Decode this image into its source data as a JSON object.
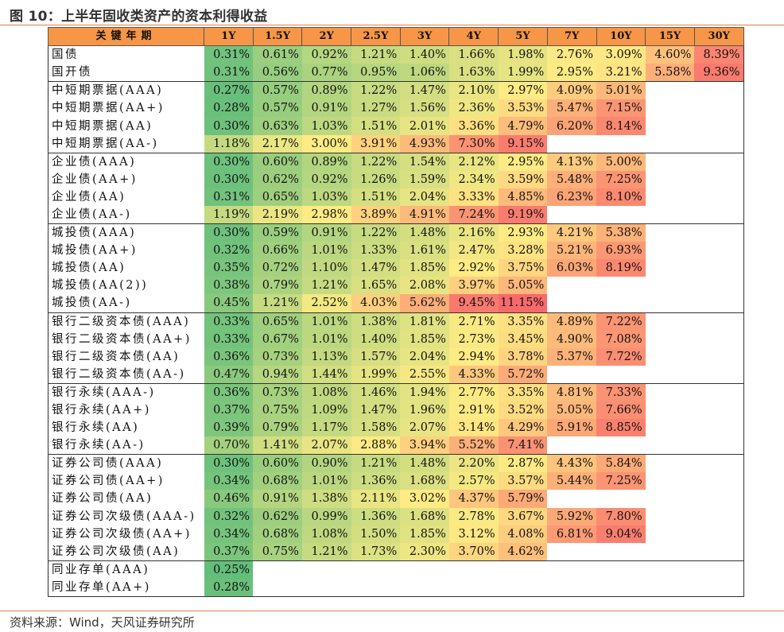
{
  "title": "图 10：上半年固收类资产的资本利得收益",
  "source": "资料来源：Wind，天风证券研究所",
  "headers": [
    "关键年期",
    "1Y",
    "1.5Y",
    "2Y",
    "2.5Y",
    "3Y",
    "4Y",
    "5Y",
    "7Y",
    "10Y",
    "15Y",
    "30Y"
  ],
  "rows": [
    {
      "label": "国债",
      "values": [
        "0.31%",
        "0.61%",
        "0.92%",
        "1.21%",
        "1.40%",
        "1.66%",
        "1.98%",
        "2.76%",
        "3.09%",
        "4.60%",
        "8.39%"
      ]
    },
    {
      "label": "国开债",
      "values": [
        "0.31%",
        "0.56%",
        "0.77%",
        "0.95%",
        "1.06%",
        "1.63%",
        "1.99%",
        "2.95%",
        "3.21%",
        "5.58%",
        "9.36%"
      ]
    },
    {
      "label": "中短期票据(AAA)",
      "values": [
        "0.27%",
        "0.57%",
        "0.89%",
        "1.22%",
        "1.47%",
        "2.10%",
        "2.97%",
        "4.09%",
        "5.01%",
        "",
        ""
      ]
    },
    {
      "label": "中短期票据(AA+)",
      "values": [
        "0.28%",
        "0.57%",
        "0.91%",
        "1.27%",
        "1.56%",
        "2.36%",
        "3.53%",
        "5.47%",
        "7.15%",
        "",
        ""
      ]
    },
    {
      "label": "中短期票据(AA)",
      "values": [
        "0.30%",
        "0.63%",
        "1.03%",
        "1.51%",
        "2.01%",
        "3.36%",
        "4.79%",
        "6.20%",
        "8.14%",
        "",
        ""
      ]
    },
    {
      "label": "中短期票据(AA-)",
      "values": [
        "1.18%",
        "2.17%",
        "3.00%",
        "3.91%",
        "4.93%",
        "7.30%",
        "9.15%",
        "",
        "",
        "",
        ""
      ]
    },
    {
      "label": "企业债(AAA)",
      "values": [
        "0.30%",
        "0.60%",
        "0.89%",
        "1.22%",
        "1.54%",
        "2.12%",
        "2.95%",
        "4.13%",
        "5.00%",
        "",
        ""
      ]
    },
    {
      "label": "企业债(AA+)",
      "values": [
        "0.30%",
        "0.62%",
        "0.92%",
        "1.26%",
        "1.59%",
        "2.34%",
        "3.59%",
        "5.48%",
        "7.25%",
        "",
        ""
      ]
    },
    {
      "label": "企业债(AA)",
      "values": [
        "0.31%",
        "0.65%",
        "1.03%",
        "1.51%",
        "2.04%",
        "3.33%",
        "4.85%",
        "6.23%",
        "8.10%",
        "",
        ""
      ]
    },
    {
      "label": "企业债(AA-)",
      "values": [
        "1.19%",
        "2.19%",
        "2.98%",
        "3.89%",
        "4.91%",
        "7.24%",
        "9.19%",
        "",
        "",
        "",
        ""
      ]
    },
    {
      "label": "城投债(AAA)",
      "values": [
        "0.30%",
        "0.59%",
        "0.91%",
        "1.22%",
        "1.48%",
        "2.16%",
        "2.93%",
        "4.21%",
        "5.38%",
        "",
        ""
      ]
    },
    {
      "label": "城投债(AA+)",
      "values": [
        "0.32%",
        "0.66%",
        "1.01%",
        "1.33%",
        "1.61%",
        "2.47%",
        "3.28%",
        "5.21%",
        "6.93%",
        "",
        ""
      ]
    },
    {
      "label": "城投债(AA)",
      "values": [
        "0.35%",
        "0.72%",
        "1.10%",
        "1.47%",
        "1.85%",
        "2.92%",
        "3.75%",
        "6.03%",
        "8.19%",
        "",
        ""
      ]
    },
    {
      "label": "城投债(AA(2))",
      "values": [
        "0.38%",
        "0.79%",
        "1.21%",
        "1.65%",
        "2.08%",
        "3.97%",
        "5.05%",
        "",
        "",
        "",
        ""
      ]
    },
    {
      "label": "城投债(AA-)",
      "values": [
        "0.45%",
        "1.21%",
        "2.52%",
        "4.03%",
        "5.62%",
        "9.45%",
        "11.15%",
        "",
        "",
        "",
        ""
      ]
    },
    {
      "label": "银行二级资本债(AAA)",
      "values": [
        "0.33%",
        "0.65%",
        "1.01%",
        "1.38%",
        "1.81%",
        "2.71%",
        "3.35%",
        "4.89%",
        "7.22%",
        "",
        ""
      ]
    },
    {
      "label": "银行二级资本债(AA+)",
      "values": [
        "0.33%",
        "0.67%",
        "1.01%",
        "1.40%",
        "1.85%",
        "2.73%",
        "3.45%",
        "4.90%",
        "7.08%",
        "",
        ""
      ]
    },
    {
      "label": "银行二级资本债(AA)",
      "values": [
        "0.36%",
        "0.73%",
        "1.13%",
        "1.57%",
        "2.04%",
        "2.94%",
        "3.78%",
        "5.37%",
        "7.72%",
        "",
        ""
      ]
    },
    {
      "label": "银行二级资本债(AA-)",
      "values": [
        "0.47%",
        "0.94%",
        "1.44%",
        "1.99%",
        "2.55%",
        "4.33%",
        "5.72%",
        "",
        "",
        "",
        ""
      ]
    },
    {
      "label": "银行永续(AAA-)",
      "values": [
        "0.36%",
        "0.73%",
        "1.08%",
        "1.46%",
        "1.94%",
        "2.77%",
        "3.35%",
        "4.81%",
        "7.33%",
        "",
        ""
      ]
    },
    {
      "label": "银行永续(AA+)",
      "values": [
        "0.37%",
        "0.75%",
        "1.09%",
        "1.47%",
        "1.96%",
        "2.91%",
        "3.52%",
        "5.05%",
        "7.66%",
        "",
        ""
      ]
    },
    {
      "label": "银行永续(AA)",
      "values": [
        "0.39%",
        "0.79%",
        "1.17%",
        "1.58%",
        "2.07%",
        "3.14%",
        "4.29%",
        "5.91%",
        "8.85%",
        "",
        ""
      ]
    },
    {
      "label": "银行永续(AA-)",
      "values": [
        "0.70%",
        "1.41%",
        "2.07%",
        "2.88%",
        "3.94%",
        "5.52%",
        "7.41%",
        "",
        "",
        "",
        ""
      ]
    },
    {
      "label": "证券公司债(AAA)",
      "values": [
        "0.30%",
        "0.60%",
        "0.90%",
        "1.21%",
        "1.48%",
        "2.20%",
        "2.87%",
        "4.43%",
        "5.84%",
        "",
        ""
      ]
    },
    {
      "label": "证券公司债(AA+)",
      "values": [
        "0.34%",
        "0.68%",
        "1.01%",
        "1.36%",
        "1.68%",
        "2.57%",
        "3.57%",
        "5.44%",
        "7.25%",
        "",
        ""
      ]
    },
    {
      "label": "证券公司债(AA)",
      "values": [
        "0.46%",
        "0.91%",
        "1.38%",
        "2.11%",
        "3.02%",
        "4.37%",
        "5.79%",
        "",
        "",
        "",
        ""
      ]
    },
    {
      "label": "证券公司次级债(AAA-)",
      "values": [
        "0.32%",
        "0.62%",
        "0.99%",
        "1.36%",
        "1.68%",
        "2.78%",
        "3.67%",
        "5.92%",
        "7.80%",
        "",
        ""
      ]
    },
    {
      "label": "证券公司次级债(AA+)",
      "values": [
        "0.34%",
        "0.68%",
        "1.08%",
        "1.50%",
        "1.85%",
        "3.12%",
        "4.08%",
        "6.81%",
        "9.04%",
        "",
        ""
      ]
    },
    {
      "label": "证券公司次级债(AA)",
      "values": [
        "0.37%",
        "0.75%",
        "1.21%",
        "1.73%",
        "2.30%",
        "3.70%",
        "4.62%",
        "",
        "",
        "",
        ""
      ]
    },
    {
      "label": "同业存单(AAA)",
      "values": [
        "0.25%",
        "",
        "",
        "",
        "",
        "",
        "",
        "",
        "",
        "",
        ""
      ]
    },
    {
      "label": "同业存单(AA+)",
      "values": [
        "0.28%",
        "",
        "",
        "",
        "",
        "",
        "",
        "",
        "",
        "",
        ""
      ]
    }
  ],
  "group_starts": [
    2,
    6,
    10,
    15,
    19,
    23,
    29
  ],
  "colors": {
    "header": "#f79646",
    "low": "#63be7b",
    "mid": "#ffeb84",
    "high": "#f8696b",
    "rule": "#e08040"
  }
}
